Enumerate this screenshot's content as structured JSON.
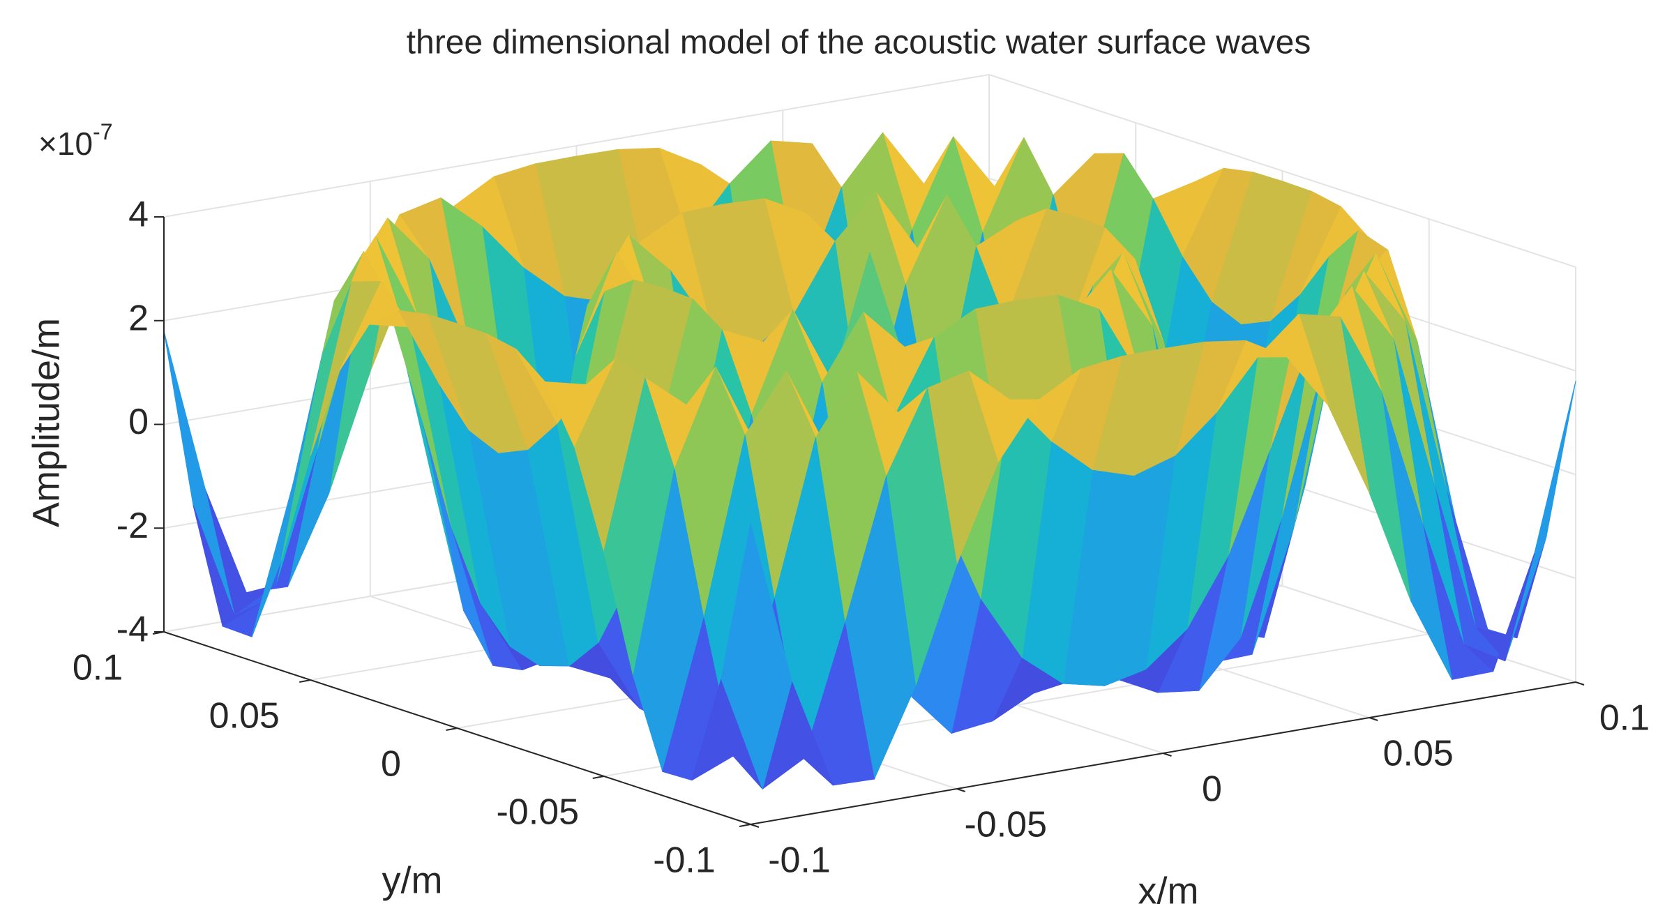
{
  "chart_data": {
    "type": "surface",
    "title": "three dimensional model of the acoustic water surface waves",
    "xlabel": "x/m",
    "ylabel": "y/m",
    "zlabel": "Amplitude/m",
    "zexponent": {
      "base": "×10",
      "power": "-7"
    },
    "x": [
      -0.1,
      -0.09,
      -0.08,
      -0.07,
      -0.06,
      -0.05,
      -0.04,
      -0.03,
      -0.02,
      -0.01,
      0,
      0.01,
      0.02,
      0.03,
      0.04,
      0.05,
      0.06,
      0.07,
      0.08,
      0.09,
      0.1
    ],
    "y": [
      -0.1,
      -0.09,
      -0.08,
      -0.07,
      -0.06,
      -0.05,
      -0.04,
      -0.03,
      -0.02,
      -0.01,
      0,
      0.01,
      0.02,
      0.03,
      0.04,
      0.05,
      0.06,
      0.07,
      0.08,
      0.09,
      0.1
    ],
    "z": [
      [
        1.8,
        -1.38,
        -3.52,
        -3.54,
        -1.88,
        0.33,
        2.16,
        3.23,
        3.68,
        3.79,
        3.8,
        3.79,
        3.68,
        3.23,
        2.16,
        0.33,
        -1.88,
        -3.54,
        -3.52,
        -1.38,
        1.8
      ],
      [
        -1.38,
        -3.64,
        -3.19,
        -0.72,
        1.97,
        3.54,
        3.73,
        3.04,
        2.11,
        1.42,
        1.17,
        1.42,
        2.11,
        3.04,
        3.73,
        3.54,
        1.97,
        -0.72,
        -3.19,
        -3.64,
        -1.38
      ],
      [
        -3.52,
        -3.19,
        -0.3,
        2.67,
        3.8,
        2.88,
        0.92,
        -0.97,
        -2.25,
        -2.89,
        -3.07,
        -2.89,
        -2.25,
        -0.97,
        0.92,
        2.88,
        3.8,
        2.67,
        -0.3,
        -3.19,
        -3.52
      ],
      [
        -3.54,
        -0.72,
        2.67,
        3.77,
        2.11,
        -0.71,
        -2.89,
        -3.76,
        -3.66,
        -3.26,
        -3.07,
        -3.26,
        -3.66,
        -3.76,
        -2.89,
        -0.71,
        2.11,
        3.77,
        2.67,
        -0.72,
        -3.54
      ],
      [
        -1.88,
        1.97,
        3.8,
        2.11,
        -1.24,
        -3.52,
        -3.55,
        -2.07,
        -0.36,
        0.79,
        1.17,
        0.79,
        -0.36,
        -2.07,
        -3.55,
        -3.52,
        -1.24,
        2.11,
        3.8,
        1.97,
        -1.88
      ],
      [
        0.33,
        3.54,
        2.88,
        -0.71,
        -3.52,
        -3.26,
        -0.73,
        1.91,
        3.36,
        3.77,
        3.8,
        3.77,
        3.36,
        1.91,
        -0.73,
        -3.26,
        -3.52,
        -0.71,
        2.88,
        3.54,
        0.33
      ],
      [
        2.16,
        3.73,
        0.92,
        -2.89,
        -3.55,
        -0.73,
        2.58,
        3.8,
        2.99,
        1.72,
        1.17,
        1.72,
        2.99,
        3.8,
        2.58,
        -0.73,
        -3.55,
        -2.89,
        0.92,
        3.73,
        2.16
      ],
      [
        3.23,
        3.04,
        -0.97,
        -3.76,
        -2.07,
        1.91,
        3.8,
        2.21,
        -0.69,
        -2.56,
        -3.07,
        -2.56,
        -0.69,
        2.21,
        3.8,
        1.91,
        -2.07,
        -3.76,
        -0.97,
        3.04,
        3.23
      ],
      [
        3.68,
        2.11,
        -2.25,
        -3.66,
        -0.36,
        3.36,
        2.99,
        -0.69,
        -3.48,
        -3.59,
        -3.07,
        -3.59,
        -3.48,
        -0.69,
        2.99,
        3.36,
        -0.36,
        -3.66,
        -2.25,
        2.11,
        3.68
      ],
      [
        3.79,
        1.42,
        -2.89,
        -3.26,
        0.79,
        3.77,
        1.72,
        -2.56,
        -3.59,
        -0.78,
        1.17,
        -0.78,
        -3.59,
        -2.56,
        1.72,
        3.77,
        0.79,
        -3.26,
        -2.89,
        1.42,
        3.79
      ],
      [
        3.8,
        1.17,
        -3.07,
        -3.07,
        1.17,
        3.8,
        1.17,
        -3.07,
        -3.07,
        1.17,
        3.8,
        1.17,
        -3.07,
        -3.07,
        1.17,
        3.8,
        1.17,
        -3.07,
        -3.07,
        1.17,
        3.8
      ],
      [
        3.79,
        1.42,
        -2.89,
        -3.26,
        0.79,
        3.77,
        1.72,
        -2.56,
        -3.59,
        -0.78,
        1.17,
        -0.78,
        -3.59,
        -2.56,
        1.72,
        3.77,
        0.79,
        -3.26,
        -2.89,
        1.42,
        3.79
      ],
      [
        3.68,
        2.11,
        -2.25,
        -3.66,
        -0.36,
        3.36,
        2.99,
        -0.69,
        -3.48,
        -3.59,
        -3.07,
        -3.59,
        -3.48,
        -0.69,
        2.99,
        3.36,
        -0.36,
        -3.66,
        -2.25,
        2.11,
        3.68
      ],
      [
        3.23,
        3.04,
        -0.97,
        -3.76,
        -2.07,
        1.91,
        3.8,
        2.21,
        -0.69,
        -2.56,
        -3.07,
        -2.56,
        -0.69,
        2.21,
        3.8,
        1.91,
        -2.07,
        -3.76,
        -0.97,
        3.04,
        3.23
      ],
      [
        2.16,
        3.73,
        0.92,
        -2.89,
        -3.55,
        -0.73,
        2.58,
        3.8,
        2.99,
        1.72,
        1.17,
        1.72,
        2.99,
        3.8,
        2.58,
        -0.73,
        -3.55,
        -2.89,
        0.92,
        3.73,
        2.16
      ],
      [
        0.33,
        3.54,
        2.88,
        -0.71,
        -3.52,
        -3.26,
        -0.73,
        1.91,
        3.36,
        3.77,
        3.8,
        3.77,
        3.36,
        1.91,
        -0.73,
        -3.26,
        -3.52,
        -0.71,
        2.88,
        3.54,
        0.33
      ],
      [
        -1.88,
        1.97,
        3.8,
        2.11,
        -1.24,
        -3.52,
        -3.55,
        -2.07,
        -0.36,
        0.79,
        1.17,
        0.79,
        -0.36,
        -2.07,
        -3.55,
        -3.52,
        -1.24,
        2.11,
        3.8,
        1.97,
        -1.88
      ],
      [
        -3.54,
        -0.72,
        2.67,
        3.77,
        2.11,
        -0.71,
        -2.89,
        -3.76,
        -3.66,
        -3.26,
        -3.07,
        -3.26,
        -3.66,
        -3.76,
        -2.89,
        -0.71,
        2.11,
        3.77,
        2.67,
        -0.72,
        -3.54
      ],
      [
        -3.52,
        -3.19,
        -0.3,
        2.67,
        3.8,
        2.88,
        0.92,
        -0.97,
        -2.25,
        -2.89,
        -3.07,
        -2.89,
        -2.25,
        -0.97,
        0.92,
        2.88,
        3.8,
        2.67,
        -0.3,
        -3.19,
        -3.52
      ],
      [
        -1.38,
        -3.64,
        -3.19,
        -0.72,
        1.97,
        3.54,
        3.73,
        3.04,
        2.11,
        1.42,
        1.17,
        1.42,
        2.11,
        3.04,
        3.73,
        3.54,
        1.97,
        -0.72,
        -3.19,
        -3.64,
        -1.38
      ],
      [
        1.8,
        -1.38,
        -3.52,
        -3.54,
        -1.88,
        0.33,
        2.16,
        3.23,
        3.68,
        3.79,
        3.8,
        3.79,
        3.68,
        3.23,
        2.16,
        0.33,
        -1.88,
        -3.54,
        -3.52,
        -1.38,
        1.8
      ]
    ],
    "xlim": [
      -0.1,
      0.1
    ],
    "ylim": [
      -0.1,
      0.1
    ],
    "zlim": [
      -4,
      4
    ],
    "xticks": [
      -0.1,
      -0.05,
      0,
      0.05,
      0.1
    ],
    "yticks": [
      -0.1,
      -0.05,
      0,
      0.05,
      0.1
    ],
    "zticks": [
      -4,
      -2,
      0,
      2,
      4
    ],
    "colormap": "parula",
    "grid": true
  }
}
